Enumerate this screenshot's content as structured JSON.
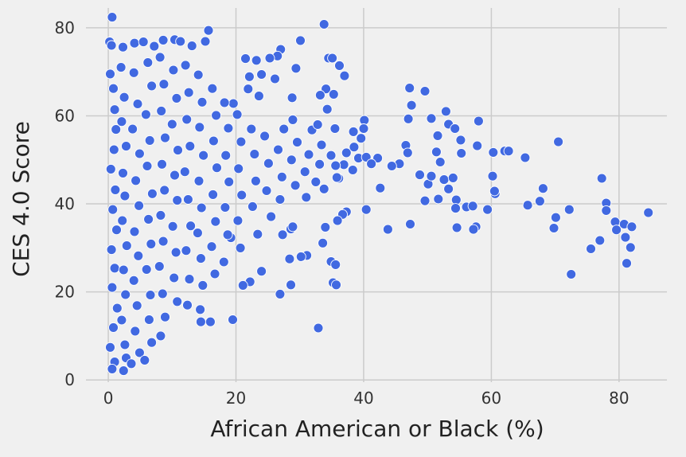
{
  "chart_data": {
    "type": "scatter",
    "xlabel": "African American or Black (%)",
    "ylabel": "CES 4.0 Score",
    "xlim": [
      -3.5,
      87.5
    ],
    "ylim": [
      -0.5,
      84.5
    ],
    "x_ticks": [
      0,
      20,
      40,
      60,
      80
    ],
    "y_ticks": [
      0,
      20,
      40,
      60,
      80
    ],
    "grid": true,
    "point_color": "#4169e1",
    "background_color": "#f0f0f0",
    "series": [
      {
        "points": [
          [
            0.6,
            82.4
          ],
          [
            33.8,
            80.8
          ],
          [
            15.7,
            79.4
          ],
          [
            30.1,
            77.1
          ],
          [
            0.2,
            76.8
          ],
          [
            0.5,
            76.0
          ],
          [
            2.3,
            75.6
          ],
          [
            4.1,
            76.5
          ],
          [
            5.5,
            76.8
          ],
          [
            7.2,
            75.8
          ],
          [
            8.6,
            77.2
          ],
          [
            10.4,
            77.3
          ],
          [
            11.3,
            76.9
          ],
          [
            13.1,
            75.9
          ],
          [
            15.2,
            76.9
          ],
          [
            27.0,
            75.1
          ],
          [
            26.5,
            73.6
          ],
          [
            25.3,
            73.1
          ],
          [
            23.2,
            72.6
          ],
          [
            21.5,
            73.0
          ],
          [
            22.1,
            68.9
          ],
          [
            24.0,
            69.4
          ],
          [
            26.1,
            68.4
          ],
          [
            29.4,
            70.8
          ],
          [
            34.5,
            73.1
          ],
          [
            35.1,
            73.1
          ],
          [
            36.2,
            71.4
          ],
          [
            37.0,
            69.1
          ],
          [
            34.1,
            66.1
          ],
          [
            35.3,
            64.9
          ],
          [
            33.2,
            64.7
          ],
          [
            28.8,
            64.1
          ],
          [
            23.6,
            64.5
          ],
          [
            21.9,
            66.1
          ],
          [
            19.6,
            62.8
          ],
          [
            47.2,
            66.3
          ],
          [
            49.6,
            65.6
          ],
          [
            47.5,
            62.4
          ],
          [
            52.9,
            61.0
          ],
          [
            47.0,
            59.3
          ],
          [
            50.6,
            59.4
          ],
          [
            53.3,
            58.1
          ],
          [
            58.0,
            58.8
          ],
          [
            54.3,
            57.1
          ],
          [
            51.6,
            55.5
          ],
          [
            55.2,
            54.5
          ],
          [
            57.8,
            53.2
          ],
          [
            46.6,
            53.3
          ],
          [
            46.9,
            51.6
          ],
          [
            45.6,
            49.1
          ],
          [
            44.4,
            48.6
          ],
          [
            48.8,
            46.6
          ],
          [
            51.4,
            51.8
          ],
          [
            52.0,
            49.5
          ],
          [
            55.3,
            51.5
          ],
          [
            60.3,
            51.7
          ],
          [
            62.1,
            52.0
          ],
          [
            62.7,
            52.0
          ],
          [
            65.3,
            50.5
          ],
          [
            70.5,
            54.1
          ],
          [
            40.1,
            59.0
          ],
          [
            40.0,
            57.1
          ],
          [
            39.6,
            54.9
          ],
          [
            38.4,
            56.4
          ],
          [
            38.5,
            52.9
          ],
          [
            37.3,
            51.6
          ],
          [
            39.2,
            50.4
          ],
          [
            36.9,
            48.9
          ],
          [
            40.4,
            50.6
          ],
          [
            42.2,
            50.4
          ],
          [
            41.2,
            49.1
          ],
          [
            36.1,
            45.8
          ],
          [
            33.8,
            43.4
          ],
          [
            35.6,
            48.7
          ],
          [
            38.3,
            47.7
          ],
          [
            42.6,
            43.6
          ],
          [
            50.1,
            44.5
          ],
          [
            50.6,
            46.3
          ],
          [
            53.3,
            43.4
          ],
          [
            52.6,
            45.5
          ],
          [
            54.0,
            45.9
          ],
          [
            56.1,
            39.3
          ],
          [
            54.5,
            40.9
          ],
          [
            54.4,
            39.0
          ],
          [
            51.7,
            41.1
          ],
          [
            49.6,
            40.7
          ],
          [
            57.1,
            39.5
          ],
          [
            59.4,
            38.7
          ],
          [
            60.2,
            46.3
          ],
          [
            60.6,
            42.3
          ],
          [
            60.5,
            42.9
          ],
          [
            65.7,
            39.7
          ],
          [
            67.6,
            40.6
          ],
          [
            68.1,
            43.5
          ],
          [
            70.1,
            36.9
          ],
          [
            75.6,
            29.8
          ],
          [
            77.0,
            31.7
          ],
          [
            77.3,
            45.8
          ],
          [
            78.0,
            40.2
          ],
          [
            78.0,
            38.5
          ],
          [
            79.4,
            35.9
          ],
          [
            79.6,
            34.1
          ],
          [
            80.8,
            35.4
          ],
          [
            81.0,
            32.4
          ],
          [
            82.0,
            34.8
          ],
          [
            81.8,
            30.1
          ],
          [
            81.2,
            26.5
          ],
          [
            84.6,
            38.0
          ],
          [
            72.2,
            38.7
          ],
          [
            72.5,
            24.0
          ],
          [
            69.8,
            34.5
          ],
          [
            57.6,
            34.8
          ],
          [
            57.2,
            34.2
          ],
          [
            54.6,
            34.6
          ],
          [
            47.3,
            35.4
          ],
          [
            43.8,
            34.2
          ],
          [
            40.4,
            38.7
          ],
          [
            37.3,
            38.2
          ],
          [
            36.7,
            37.6
          ],
          [
            34.0,
            34.7
          ],
          [
            35.9,
            36.2
          ],
          [
            33.6,
            31.1
          ],
          [
            31.1,
            28.3
          ],
          [
            30.2,
            28.0
          ],
          [
            28.4,
            27.5
          ],
          [
            28.6,
            34.3
          ],
          [
            28.9,
            34.8
          ],
          [
            27.3,
            33.0
          ],
          [
            26.9,
            19.5
          ],
          [
            24.0,
            24.7
          ],
          [
            22.2,
            22.3
          ],
          [
            21.1,
            21.5
          ],
          [
            28.6,
            21.6
          ],
          [
            34.9,
            26.9
          ],
          [
            35.6,
            26.2
          ],
          [
            35.2,
            22.1
          ],
          [
            35.7,
            21.6
          ],
          [
            32.9,
            11.8
          ],
          [
            19.5,
            13.7
          ],
          [
            14.5,
            13.2
          ],
          [
            16.0,
            13.2
          ],
          [
            19.2,
            32.3
          ],
          [
            0.3,
            69.5
          ],
          [
            0.8,
            66.2
          ],
          [
            1.0,
            61.4
          ],
          [
            1.2,
            56.9
          ],
          [
            0.9,
            52.3
          ],
          [
            0.4,
            47.9
          ],
          [
            1.1,
            43.2
          ],
          [
            0.7,
            38.7
          ],
          [
            1.3,
            34.1
          ],
          [
            0.5,
            29.6
          ],
          [
            1.0,
            25.4
          ],
          [
            0.6,
            21.0
          ],
          [
            1.4,
            16.3
          ],
          [
            0.8,
            11.9
          ],
          [
            0.3,
            7.4
          ],
          [
            1.0,
            4.1
          ],
          [
            0.6,
            2.5
          ],
          [
            2.0,
            71.0
          ],
          [
            2.5,
            64.2
          ],
          [
            2.1,
            58.7
          ],
          [
            2.8,
            53.1
          ],
          [
            2.3,
            47.0
          ],
          [
            2.6,
            41.8
          ],
          [
            2.2,
            36.2
          ],
          [
            2.9,
            30.5
          ],
          [
            2.4,
            25.0
          ],
          [
            2.7,
            19.4
          ],
          [
            2.1,
            13.6
          ],
          [
            2.6,
            8.0
          ],
          [
            2.8,
            5.0
          ],
          [
            2.4,
            2.1
          ],
          [
            4.0,
            69.8
          ],
          [
            4.6,
            62.7
          ],
          [
            3.8,
            57.0
          ],
          [
            4.9,
            51.4
          ],
          [
            4.3,
            45.3
          ],
          [
            4.8,
            39.6
          ],
          [
            4.1,
            33.7
          ],
          [
            4.7,
            28.2
          ],
          [
            4.0,
            22.6
          ],
          [
            4.5,
            16.9
          ],
          [
            4.2,
            11.1
          ],
          [
            4.9,
            6.2
          ],
          [
            3.6,
            3.7
          ],
          [
            6.2,
            72.1
          ],
          [
            6.8,
            66.8
          ],
          [
            5.9,
            60.3
          ],
          [
            6.5,
            54.4
          ],
          [
            6.1,
            48.6
          ],
          [
            6.9,
            42.3
          ],
          [
            6.3,
            36.5
          ],
          [
            6.7,
            30.9
          ],
          [
            6.0,
            25.1
          ],
          [
            6.6,
            19.3
          ],
          [
            6.4,
            13.7
          ],
          [
            6.8,
            8.5
          ],
          [
            5.7,
            4.5
          ],
          [
            8.1,
            73.3
          ],
          [
            8.7,
            67.2
          ],
          [
            8.3,
            61.1
          ],
          [
            8.9,
            55.0
          ],
          [
            8.4,
            49.0
          ],
          [
            8.8,
            43.1
          ],
          [
            8.2,
            37.4
          ],
          [
            8.6,
            31.5
          ],
          [
            8.0,
            25.8
          ],
          [
            8.5,
            19.6
          ],
          [
            8.9,
            14.3
          ],
          [
            8.2,
            10.0
          ],
          [
            10.2,
            70.4
          ],
          [
            10.7,
            64.0
          ],
          [
            10.0,
            58.1
          ],
          [
            10.9,
            52.2
          ],
          [
            10.4,
            46.5
          ],
          [
            10.8,
            40.8
          ],
          [
            10.1,
            34.9
          ],
          [
            10.6,
            29.0
          ],
          [
            10.3,
            23.2
          ],
          [
            10.8,
            17.8
          ],
          [
            12.1,
            71.5
          ],
          [
            12.6,
            65.3
          ],
          [
            12.3,
            59.2
          ],
          [
            12.8,
            53.1
          ],
          [
            12.0,
            47.3
          ],
          [
            12.5,
            41.0
          ],
          [
            12.9,
            35.0
          ],
          [
            12.2,
            29.4
          ],
          [
            12.7,
            22.9
          ],
          [
            12.4,
            17.0
          ],
          [
            14.1,
            69.3
          ],
          [
            14.7,
            63.1
          ],
          [
            14.3,
            57.4
          ],
          [
            14.9,
            51.0
          ],
          [
            14.2,
            45.2
          ],
          [
            14.6,
            39.1
          ],
          [
            14.0,
            33.4
          ],
          [
            14.5,
            27.6
          ],
          [
            14.8,
            21.5
          ],
          [
            14.4,
            16.0
          ],
          [
            16.3,
            66.2
          ],
          [
            16.9,
            60.1
          ],
          [
            16.5,
            54.3
          ],
          [
            17.0,
            48.2
          ],
          [
            16.4,
            42.1
          ],
          [
            16.8,
            36.0
          ],
          [
            16.2,
            30.3
          ],
          [
            16.7,
            24.1
          ],
          [
            18.2,
            63.0
          ],
          [
            18.8,
            57.2
          ],
          [
            18.4,
            51.0
          ],
          [
            18.9,
            45.0
          ],
          [
            18.3,
            39.2
          ],
          [
            18.7,
            33.0
          ],
          [
            18.1,
            26.8
          ],
          [
            20.2,
            60.3
          ],
          [
            20.8,
            54.1
          ],
          [
            20.4,
            48.0
          ],
          [
            20.9,
            42.0
          ],
          [
            20.3,
            36.2
          ],
          [
            20.7,
            30.0
          ],
          [
            22.4,
            57.0
          ],
          [
            22.9,
            51.3
          ],
          [
            23.1,
            45.2
          ],
          [
            22.6,
            39.4
          ],
          [
            23.4,
            33.1
          ],
          [
            24.5,
            55.4
          ],
          [
            25.1,
            49.2
          ],
          [
            24.8,
            43.0
          ],
          [
            25.5,
            37.1
          ],
          [
            26.6,
            52.3
          ],
          [
            27.2,
            46.1
          ],
          [
            26.9,
            41.0
          ],
          [
            27.5,
            57.0
          ],
          [
            28.7,
            50.0
          ],
          [
            29.3,
            44.2
          ],
          [
            28.9,
            59.1
          ],
          [
            29.6,
            54.0
          ],
          [
            30.8,
            47.3
          ],
          [
            31.4,
            51.2
          ],
          [
            31.0,
            41.5
          ],
          [
            31.9,
            56.8
          ],
          [
            32.5,
            45.0
          ],
          [
            33.1,
            49.0
          ],
          [
            32.8,
            58.0
          ],
          [
            33.4,
            53.4
          ],
          [
            34.3,
            61.5
          ],
          [
            35.5,
            57.1
          ],
          [
            34.9,
            51.0
          ],
          [
            35.8,
            46.0
          ]
        ]
      }
    ]
  }
}
